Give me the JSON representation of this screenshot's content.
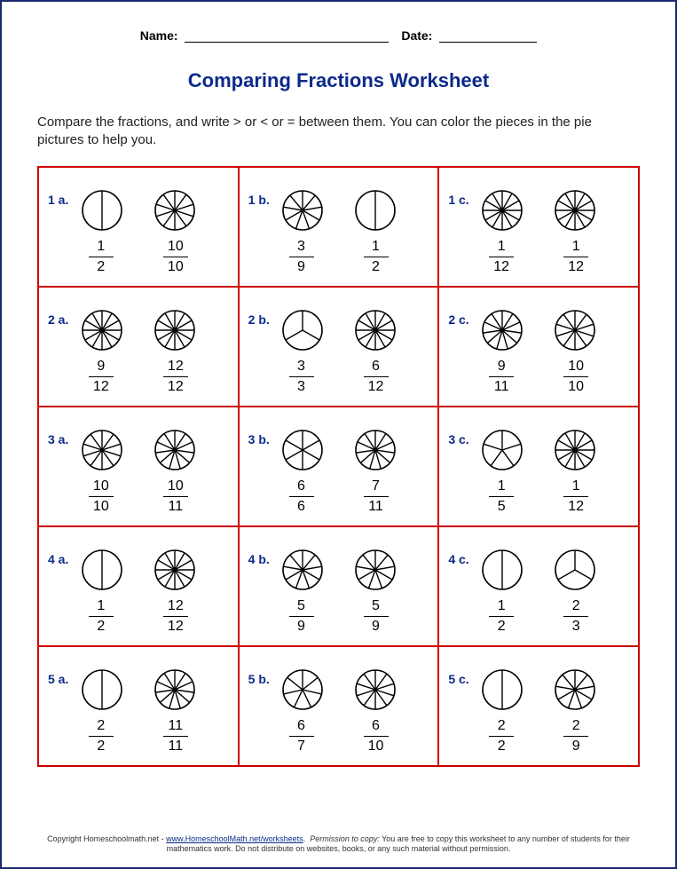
{
  "header": {
    "name_label": "Name:",
    "date_label": "Date:"
  },
  "title": "Comparing Fractions Worksheet",
  "instructions": "Compare the fractions, and write > or < or = between them. You can color the pieces in the pie pictures to help you.",
  "style": {
    "page_border_color": "#1a2a6c",
    "cell_border_color": "#c00",
    "label_color": "#0b2a8a",
    "text_color": "#000000",
    "background": "#ffffff",
    "pie_stroke": "#000000",
    "pie_radius": 22,
    "title_fontsize": 22,
    "instruction_fontsize": 15,
    "label_fontsize": 14,
    "fraction_fontsize": 16
  },
  "problems": [
    {
      "label": "1 a.",
      "left": {
        "num": "1",
        "den": "2",
        "slices": 2
      },
      "right": {
        "num": "10",
        "den": "10",
        "slices": 10
      }
    },
    {
      "label": "1 b.",
      "left": {
        "num": "3",
        "den": "9",
        "slices": 9
      },
      "right": {
        "num": "1",
        "den": "2",
        "slices": 2
      }
    },
    {
      "label": "1 c.",
      "left": {
        "num": "1",
        "den": "12",
        "slices": 12
      },
      "right": {
        "num": "1",
        "den": "12",
        "slices": 12
      }
    },
    {
      "label": "2 a.",
      "left": {
        "num": "9",
        "den": "12",
        "slices": 12
      },
      "right": {
        "num": "12",
        "den": "12",
        "slices": 12
      }
    },
    {
      "label": "2 b.",
      "left": {
        "num": "3",
        "den": "3",
        "slices": 3
      },
      "right": {
        "num": "6",
        "den": "12",
        "slices": 12
      }
    },
    {
      "label": "2 c.",
      "left": {
        "num": "9",
        "den": "11",
        "slices": 11
      },
      "right": {
        "num": "10",
        "den": "10",
        "slices": 10
      }
    },
    {
      "label": "3 a.",
      "left": {
        "num": "10",
        "den": "10",
        "slices": 10
      },
      "right": {
        "num": "10",
        "den": "11",
        "slices": 11
      }
    },
    {
      "label": "3 b.",
      "left": {
        "num": "6",
        "den": "6",
        "slices": 6
      },
      "right": {
        "num": "7",
        "den": "11",
        "slices": 11
      }
    },
    {
      "label": "3 c.",
      "left": {
        "num": "1",
        "den": "5",
        "slices": 5
      },
      "right": {
        "num": "1",
        "den": "12",
        "slices": 12
      }
    },
    {
      "label": "4 a.",
      "left": {
        "num": "1",
        "den": "2",
        "slices": 2
      },
      "right": {
        "num": "12",
        "den": "12",
        "slices": 12
      }
    },
    {
      "label": "4 b.",
      "left": {
        "num": "5",
        "den": "9",
        "slices": 9
      },
      "right": {
        "num": "5",
        "den": "9",
        "slices": 9
      }
    },
    {
      "label": "4 c.",
      "left": {
        "num": "1",
        "den": "2",
        "slices": 2
      },
      "right": {
        "num": "2",
        "den": "3",
        "slices": 3
      }
    },
    {
      "label": "5 a.",
      "left": {
        "num": "2",
        "den": "2",
        "slices": 2
      },
      "right": {
        "num": "11",
        "den": "11",
        "slices": 11
      }
    },
    {
      "label": "5 b.",
      "left": {
        "num": "6",
        "den": "7",
        "slices": 7
      },
      "right": {
        "num": "6",
        "den": "10",
        "slices": 10
      }
    },
    {
      "label": "5 c.",
      "left": {
        "num": "2",
        "den": "2",
        "slices": 2
      },
      "right": {
        "num": "2",
        "den": "9",
        "slices": 9
      }
    }
  ],
  "footer": {
    "copyright": "Copyright Homeschoolmath.net - ",
    "link_text": "www.HomeschoolMath.net/worksheets",
    "perm_label": "Permission to copy:",
    "perm_text": " You are free to copy this worksheet to any number of students for their mathematics work. Do not distribute on websites, books, or any such material without permission."
  }
}
